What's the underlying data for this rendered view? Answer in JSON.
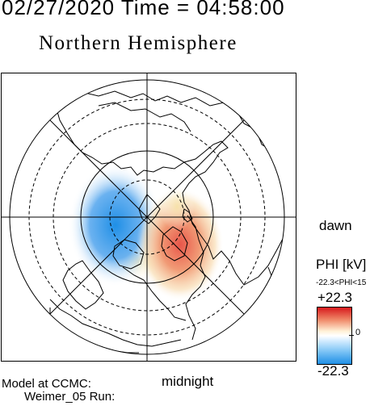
{
  "header": {
    "datetime": "02/27/2020 Time = 04:58:00",
    "hemisphere": "Northern Hemisphere"
  },
  "map": {
    "projection": "polar",
    "colors": {
      "positive": "#d7191c",
      "negative": "#1f8fe6",
      "zero": "#ffffff",
      "coast": "#000000"
    }
  },
  "labels": {
    "dawn": "dawn",
    "midnight": "midnight"
  },
  "colorbar": {
    "title": "PHI [kV]",
    "range_text": "-22.3<PHI<15",
    "max_label": "+22.3",
    "zero_label": "0",
    "min_label": "-22.3"
  },
  "footer": {
    "line1": "Model at CCMC:",
    "line2": "Weimer_05 Run:"
  }
}
